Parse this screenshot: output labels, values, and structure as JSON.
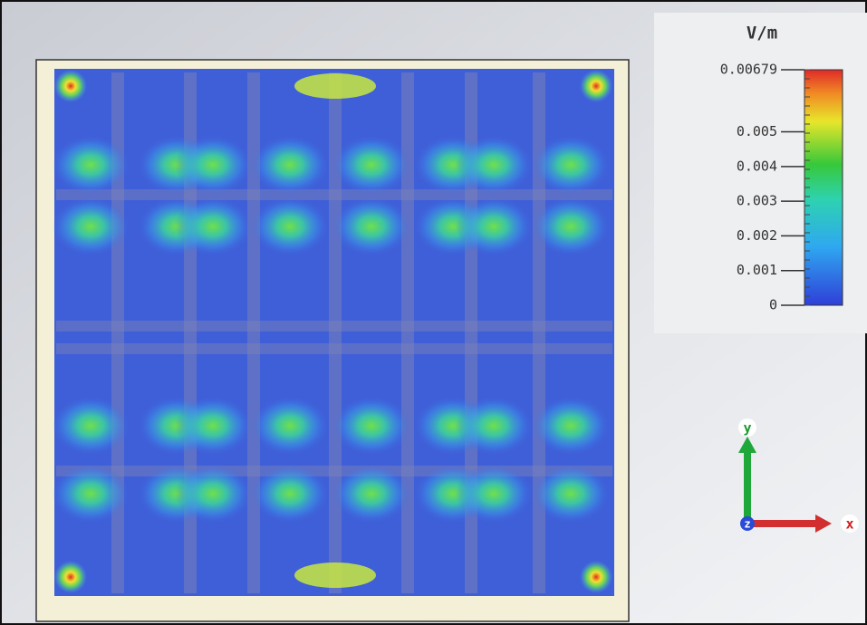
{
  "colorbar": {
    "title": "V/m",
    "lim": [
      0,
      0.00679
    ],
    "ticks": [
      0.00679,
      0.005,
      0.004,
      0.003,
      0.002,
      0.001,
      0
    ]
  },
  "axes": {
    "y": "y",
    "z": "z",
    "x": "x"
  }
}
